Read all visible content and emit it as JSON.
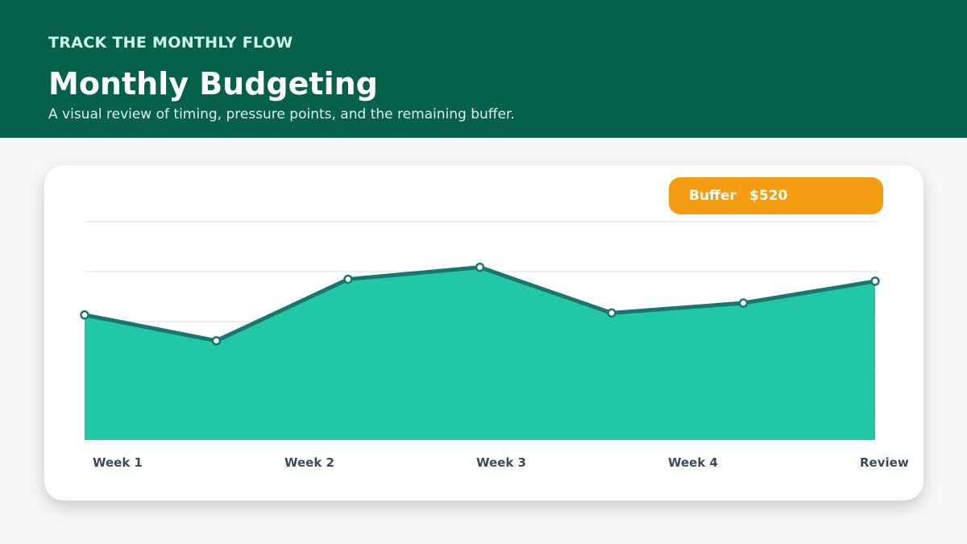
{
  "header": {
    "kicker": "TRACK THE MONTHLY FLOW",
    "title": "Monthly Budgeting",
    "subtitle": "A visual review of timing, pressure points, and the remaining buffer."
  },
  "badge": {
    "label": "Buffer",
    "value": "$520"
  },
  "colors": {
    "header_bg": "#06614a",
    "area_fill": "#22c7a6",
    "line": "#19776f",
    "badge_bg": "#f49c12",
    "gridline": "#d9dde2"
  },
  "chart_data": {
    "type": "area",
    "x_tick_labels": [
      "Week 1",
      "Week 2",
      "Week 3",
      "Week 4",
      "Review"
    ],
    "x": [
      0,
      1,
      2,
      3,
      4,
      5,
      6
    ],
    "series": [
      {
        "values": [
          63,
          50,
          81,
          87,
          64,
          69,
          80
        ]
      }
    ],
    "ylim": [
      0,
      110
    ],
    "grid": true,
    "legend": "none"
  }
}
